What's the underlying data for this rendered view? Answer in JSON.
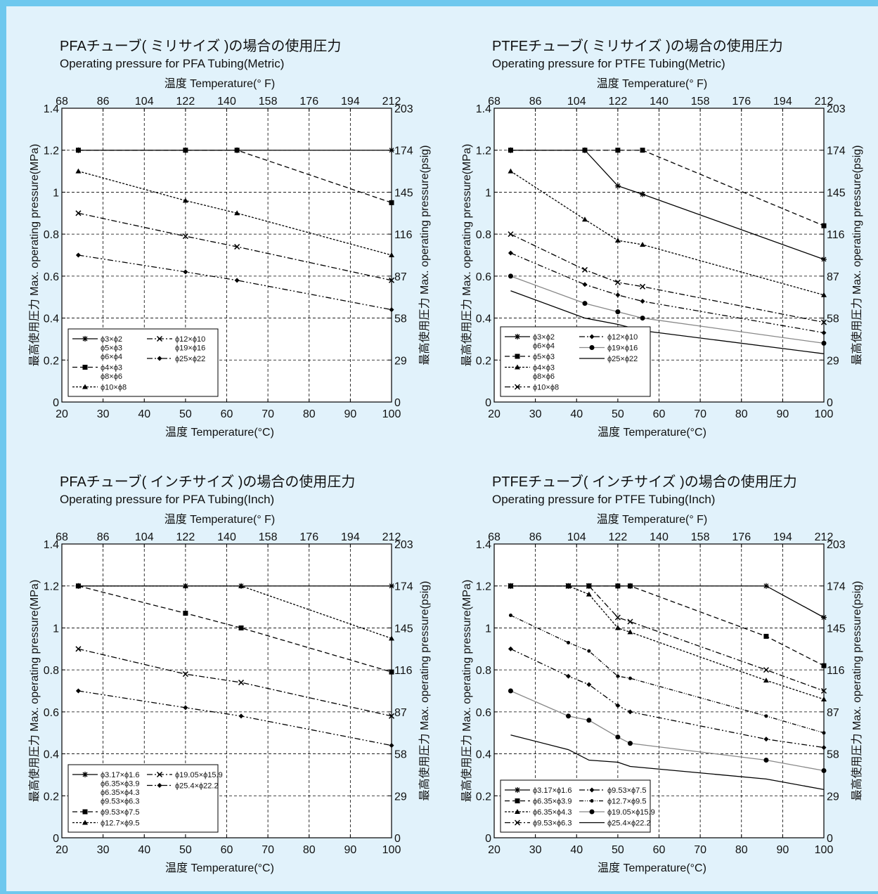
{
  "chart_data": [
    {
      "type": "line",
      "title": "PFAチューブ( ミリサイズ )の場合の使用圧力",
      "subtitle": "Operating pressure for PFA Tubing(Metric)",
      "xlabel": "温度  Temperature(°C)",
      "x2label": "温度 Temperature(° F)",
      "ylabel": "最高使用圧力  Max. operating pressure(MPa)",
      "y2label": "最高使用圧力  Max. operating pressure(psig)",
      "xlim": [
        20,
        100
      ],
      "ylim": [
        0,
        1.4
      ],
      "xticks": [
        "20",
        "30",
        "40",
        "50",
        "60",
        "70",
        "80",
        "90",
        "100"
      ],
      "x2ticks": [
        "68",
        "86",
        "104",
        "122",
        "140",
        "158",
        "176",
        "194",
        "212"
      ],
      "yticks": [
        "0",
        "0.2",
        "0.4",
        "0.6",
        "0.8",
        "1",
        "1.2",
        "1.4"
      ],
      "y2ticks": [
        "0",
        "29",
        "58",
        "87",
        "116",
        "145",
        "174",
        "203"
      ],
      "grid": true,
      "legend": {
        "position": "bottom-left",
        "columns": 2,
        "entries": [
          {
            "label": "ϕ3×ϕ2\nϕ5×ϕ3\nϕ6×ϕ4",
            "dash": "",
            "marker": "asterisk",
            "color": "#000000"
          },
          {
            "label": "ϕ4×ϕ3\nϕ8×ϕ6",
            "dash": "7 4",
            "marker": "square",
            "color": "#000000"
          },
          {
            "label": "ϕ10×ϕ8",
            "dash": "3 2",
            "marker": "triangle",
            "color": "#000000"
          },
          {
            "label": "ϕ12×ϕ10\nϕ19×ϕ16",
            "dash": "8 3 2 3",
            "marker": "x",
            "color": "#000000"
          },
          {
            "label": "ϕ25×ϕ22",
            "dash": "8 3 2 3 2 3",
            "marker": "diamond",
            "color": "#000000"
          }
        ]
      },
      "series": [
        {
          "x": [
            24,
            50,
            62.5,
            100
          ],
          "y": [
            1.2,
            1.2,
            1.2,
            1.2
          ],
          "dash": "",
          "marker": "asterisk",
          "color": "#000000"
        },
        {
          "x": [
            24,
            50,
            62.5,
            100
          ],
          "y": [
            1.2,
            1.2,
            1.2,
            0.95
          ],
          "dash": "7 4",
          "marker": "square",
          "color": "#000000"
        },
        {
          "x": [
            24,
            50,
            62.5,
            100
          ],
          "y": [
            1.1,
            0.96,
            0.9,
            0.7
          ],
          "dash": "3 2",
          "marker": "triangle",
          "color": "#000000"
        },
        {
          "x": [
            24,
            50,
            62.5,
            100
          ],
          "y": [
            0.9,
            0.79,
            0.74,
            0.58
          ],
          "dash": "8 3 2 3",
          "marker": "x",
          "color": "#000000"
        },
        {
          "x": [
            24,
            50,
            62.5,
            100
          ],
          "y": [
            0.7,
            0.62,
            0.58,
            0.44
          ],
          "dash": "8 3 2 3 2 3",
          "marker": "diamond",
          "color": "#000000"
        }
      ]
    },
    {
      "type": "line",
      "title": "PTFEチューブ( ミリサイズ )の場合の使用圧力",
      "subtitle": "Operating pressure for PTFE Tubing(Metric)",
      "xlabel": "温度  Temperature(°C)",
      "x2label": "温度 Temperature(° F)",
      "ylabel": "最高使用圧力  Max. operating pressure(MPa)",
      "y2label": "最高使用圧力  Max. operating pressure(psig)",
      "xlim": [
        20,
        100
      ],
      "ylim": [
        0,
        1.4
      ],
      "xticks": [
        "20",
        "30",
        "40",
        "50",
        "60",
        "70",
        "80",
        "90",
        "100"
      ],
      "x2ticks": [
        "68",
        "86",
        "104",
        "122",
        "140",
        "158",
        "176",
        "194",
        "212"
      ],
      "yticks": [
        "0",
        "0.2",
        "0.4",
        "0.6",
        "0.8",
        "1",
        "1.2",
        "1.4"
      ],
      "y2ticks": [
        "0",
        "29",
        "58",
        "87",
        "116",
        "145",
        "174",
        "203"
      ],
      "grid": true,
      "legend": {
        "position": "bottom-left",
        "columns": 2,
        "entries": [
          {
            "label": "ϕ3×ϕ2\nϕ6×ϕ4",
            "dash": "",
            "marker": "asterisk",
            "color": "#000000"
          },
          {
            "label": "ϕ5×ϕ3",
            "dash": "7 4",
            "marker": "square",
            "color": "#000000"
          },
          {
            "label": "ϕ4×ϕ3\nϕ8×ϕ6",
            "dash": "3 2",
            "marker": "triangle",
            "color": "#000000"
          },
          {
            "label": "ϕ10×ϕ8",
            "dash": "8 3 2 3",
            "marker": "x",
            "color": "#000000"
          },
          {
            "label": "ϕ12×ϕ10",
            "dash": "8 3 2 3 2 3",
            "marker": "diamond",
            "color": "#000000"
          },
          {
            "label": "ϕ19×ϕ16",
            "dash": "",
            "marker": "circle",
            "color": "#888888"
          },
          {
            "label": "ϕ25×ϕ22",
            "dash": "",
            "marker": "none",
            "color": "#000000"
          }
        ]
      },
      "series": [
        {
          "x": [
            24,
            42,
            50,
            56,
            100
          ],
          "y": [
            1.2,
            1.2,
            1.03,
            0.99,
            0.68
          ],
          "dash": "",
          "marker": "asterisk",
          "color": "#000000"
        },
        {
          "x": [
            24,
            42,
            50,
            56,
            100
          ],
          "y": [
            1.2,
            1.2,
            1.2,
            1.2,
            0.84
          ],
          "dash": "7 4",
          "marker": "square",
          "color": "#000000"
        },
        {
          "x": [
            24,
            42,
            50,
            56,
            100
          ],
          "y": [
            1.1,
            0.87,
            0.77,
            0.75,
            0.51
          ],
          "dash": "3 2",
          "marker": "triangle",
          "color": "#000000"
        },
        {
          "x": [
            24,
            42,
            50,
            56,
            100
          ],
          "y": [
            0.8,
            0.63,
            0.57,
            0.55,
            0.38
          ],
          "dash": "8 3 2 3",
          "marker": "x",
          "color": "#000000"
        },
        {
          "x": [
            24,
            42,
            50,
            56,
            100
          ],
          "y": [
            0.71,
            0.56,
            0.51,
            0.48,
            0.33
          ],
          "dash": "8 3 2 3 2 3",
          "marker": "diamond",
          "color": "#000000"
        },
        {
          "x": [
            24,
            42,
            50,
            56,
            100
          ],
          "y": [
            0.6,
            0.47,
            0.43,
            0.4,
            0.28
          ],
          "dash": "",
          "marker": "circle",
          "color": "#888888"
        },
        {
          "x": [
            24,
            42,
            50,
            56,
            100
          ],
          "y": [
            0.53,
            0.4,
            0.37,
            0.34,
            0.23
          ],
          "dash": "",
          "marker": "none",
          "color": "#000000"
        }
      ]
    },
    {
      "type": "line",
      "title": "PFAチューブ( インチサイズ )の場合の使用圧力",
      "subtitle": "Operating pressure for PFA Tubing(Inch)",
      "xlabel": "温度  Temperature(°C)",
      "x2label": "温度 Temperature(° F)",
      "ylabel": "最高使用圧力  Max. operating pressure(MPa)",
      "y2label": "最高使用圧力  Max. operating pressure(psig)",
      "xlim": [
        20,
        100
      ],
      "ylim": [
        0,
        1.4
      ],
      "xticks": [
        "20",
        "30",
        "40",
        "50",
        "60",
        "70",
        "80",
        "90",
        "100"
      ],
      "x2ticks": [
        "68",
        "86",
        "104",
        "122",
        "140",
        "158",
        "176",
        "194",
        "212"
      ],
      "yticks": [
        "0",
        "0.2",
        "0.4",
        "0.6",
        "0.8",
        "1",
        "1.2",
        "1.4"
      ],
      "y2ticks": [
        "0",
        "29",
        "58",
        "87",
        "116",
        "145",
        "174",
        "203"
      ],
      "grid": true,
      "legend": {
        "position": "bottom-left",
        "columns": 2,
        "entries": [
          {
            "label": "ϕ3.17×ϕ1.6\nϕ6.35×ϕ3.9\nϕ6.35×ϕ4.3\nϕ9.53×ϕ6.3",
            "dash": "",
            "marker": "asterisk",
            "color": "#000000"
          },
          {
            "label": "ϕ9.53×ϕ7.5",
            "dash": "7 4",
            "marker": "square",
            "color": "#000000"
          },
          {
            "label": "ϕ12.7×ϕ9.5",
            "dash": "3 2",
            "marker": "triangle",
            "color": "#000000"
          },
          {
            "label": "ϕ19.05×ϕ15.9",
            "dash": "8 3 2 3",
            "marker": "x",
            "color": "#000000"
          },
          {
            "label": "ϕ25.4×ϕ22.2",
            "dash": "8 3 2 3 2 3",
            "marker": "diamond",
            "color": "#000000"
          }
        ]
      },
      "series": [
        {
          "x": [
            24,
            50,
            63.5,
            100
          ],
          "y": [
            1.2,
            1.2,
            1.2,
            1.2
          ],
          "dash": "",
          "marker": "asterisk",
          "color": "#000000"
        },
        {
          "x": [
            24,
            50,
            63.5,
            100
          ],
          "y": [
            1.2,
            1.07,
            1.0,
            0.79
          ],
          "dash": "7 4",
          "marker": "square",
          "color": "#000000"
        },
        {
          "x": [
            24,
            50,
            63.5,
            100
          ],
          "y": [
            1.2,
            1.2,
            1.2,
            0.95
          ],
          "dash": "3 2",
          "marker": "triangle",
          "color": "#000000"
        },
        {
          "x": [
            24,
            50,
            63.5,
            100
          ],
          "y": [
            0.9,
            0.78,
            0.74,
            0.58
          ],
          "dash": "8 3 2 3",
          "marker": "x",
          "color": "#000000"
        },
        {
          "x": [
            24,
            50,
            63.5,
            100
          ],
          "y": [
            0.7,
            0.62,
            0.58,
            0.44
          ],
          "dash": "8 3 2 3 2 3",
          "marker": "diamond",
          "color": "#000000"
        }
      ]
    },
    {
      "type": "line",
      "title": "PTFEチューブ( インチサイズ )の場合の使用圧力",
      "subtitle": "Operating pressure for PTFE Tubing(Inch)",
      "xlabel": "温度  Temperature(°C)",
      "x2label": "温度 Temperature(° F)",
      "ylabel": "最高使用圧力  Max. operating pressure(MPa)",
      "y2label": "最高使用圧力  Max. operating pressure(psig)",
      "xlim": [
        20,
        100
      ],
      "ylim": [
        0,
        1.4
      ],
      "xticks": [
        "20",
        "30",
        "40",
        "50",
        "60",
        "70",
        "80",
        "90",
        "100"
      ],
      "x2ticks": [
        "68",
        "86",
        "104",
        "122",
        "140",
        "158",
        "176",
        "194",
        "212"
      ],
      "yticks": [
        "0",
        "0.2",
        "0.4",
        "0.6",
        "0.8",
        "1",
        "1.2",
        "1.4"
      ],
      "y2ticks": [
        "0",
        "29",
        "58",
        "87",
        "116",
        "145",
        "174",
        "203"
      ],
      "grid": true,
      "legend": {
        "position": "bottom-left",
        "columns": 2,
        "entries": [
          {
            "label": "ϕ3.17×ϕ1.6",
            "dash": "",
            "marker": "asterisk",
            "color": "#000000"
          },
          {
            "label": "ϕ6.35×ϕ3.9",
            "dash": "7 4",
            "marker": "square",
            "color": "#000000"
          },
          {
            "label": "ϕ6.35×ϕ4.3",
            "dash": "3 2",
            "marker": "triangle",
            "color": "#000000"
          },
          {
            "label": "ϕ9.53×ϕ6.3",
            "dash": "8 3 2 3",
            "marker": "x",
            "color": "#000000"
          },
          {
            "label": "ϕ9.53×ϕ7.5",
            "dash": "8 3 2 3 2 3",
            "marker": "diamond",
            "color": "#000000"
          },
          {
            "label": "ϕ12.7×ϕ9.5",
            "dash": "6 2 1 2 1 2",
            "marker": "dot",
            "color": "#000000"
          },
          {
            "label": "ϕ19.05×ϕ15.9",
            "dash": "",
            "marker": "circle",
            "color": "#888888"
          },
          {
            "label": "ϕ25.4×ϕ22.2",
            "dash": "",
            "marker": "none",
            "color": "#000000"
          }
        ]
      },
      "series": [
        {
          "x": [
            24,
            38,
            43,
            50,
            53,
            86,
            100
          ],
          "y": [
            1.2,
            1.2,
            1.2,
            1.2,
            1.2,
            1.2,
            1.05
          ],
          "dash": "",
          "marker": "asterisk",
          "color": "#000000"
        },
        {
          "x": [
            24,
            38,
            43,
            50,
            53,
            86,
            100
          ],
          "y": [
            1.2,
            1.2,
            1.2,
            1.2,
            1.2,
            0.96,
            0.82
          ],
          "dash": "7 4",
          "marker": "square",
          "color": "#000000"
        },
        {
          "x": [
            24,
            38,
            43,
            50,
            53,
            86,
            100
          ],
          "y": [
            1.2,
            1.2,
            1.16,
            1.0,
            0.98,
            0.75,
            0.66
          ],
          "dash": "3 2",
          "marker": "triangle",
          "color": "#000000"
        },
        {
          "x": [
            24,
            38,
            43,
            50,
            53,
            86,
            100
          ],
          "y": [
            1.2,
            1.2,
            1.2,
            1.05,
            1.03,
            0.8,
            0.7
          ],
          "dash": "8 3 2 3",
          "marker": "x",
          "color": "#000000"
        },
        {
          "x": [
            24,
            38,
            43,
            50,
            53,
            86,
            100
          ],
          "y": [
            0.9,
            0.77,
            0.73,
            0.63,
            0.6,
            0.47,
            0.43
          ],
          "dash": "8 3 2 3 2 3",
          "marker": "diamond",
          "color": "#000000"
        },
        {
          "x": [
            24,
            38,
            43,
            50,
            53,
            86,
            100
          ],
          "y": [
            1.06,
            0.93,
            0.89,
            0.77,
            0.76,
            0.58,
            0.5
          ],
          "dash": "6 2 1 2 1 2",
          "marker": "dot",
          "color": "#000000"
        },
        {
          "x": [
            24,
            38,
            43,
            50,
            53,
            86,
            100
          ],
          "y": [
            0.7,
            0.58,
            0.56,
            0.48,
            0.45,
            0.37,
            0.32
          ],
          "dash": "",
          "marker": "circle",
          "color": "#888888"
        },
        {
          "x": [
            24,
            38,
            43,
            50,
            53,
            86,
            100
          ],
          "y": [
            0.49,
            0.42,
            0.37,
            0.36,
            0.34,
            0.28,
            0.23
          ],
          "dash": "",
          "marker": "none",
          "color": "#000000"
        }
      ]
    }
  ]
}
